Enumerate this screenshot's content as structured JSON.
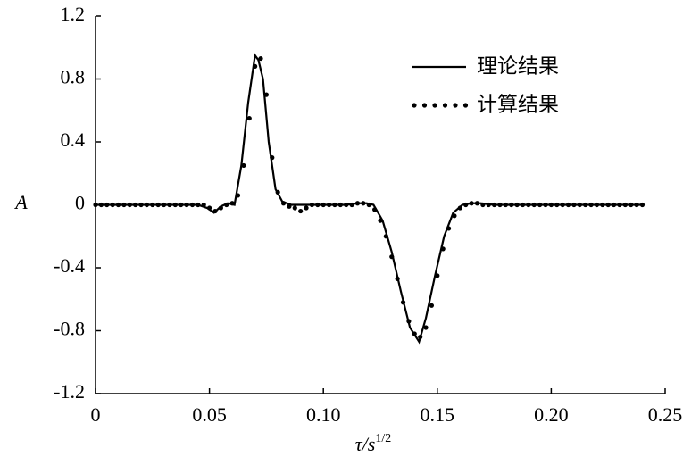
{
  "chart_data": {
    "type": "line",
    "xlabel": "τ/s",
    "xlabel_sup": "1/2",
    "ylabel": "A",
    "xlim": [
      0,
      0.25
    ],
    "ylim": [
      -1.2,
      1.2
    ],
    "xticks": [
      0,
      0.05,
      {
        "value": 0.1,
        "label": "0.10"
      },
      0.15,
      {
        "value": 0.2,
        "label": "0.20"
      },
      0.25
    ],
    "yticks": [
      1.2,
      0.8,
      0.4,
      0,
      -0.4,
      -0.8,
      -1.2
    ],
    "legend": "upper right",
    "series": [
      {
        "name": "理论结果",
        "color": "#000000",
        "style": "solid",
        "x": [
          0,
          0.045,
          0.049,
          0.052,
          0.055,
          0.058,
          0.061,
          0.064,
          0.067,
          0.07,
          0.0715,
          0.0735,
          0.076,
          0.079,
          0.082,
          0.086,
          0.09,
          0.1,
          0.11,
          0.115,
          0.119,
          0.122,
          0.126,
          0.13,
          0.134,
          0.138,
          0.142,
          0.145,
          0.149,
          0.153,
          0.157,
          0.161,
          0.165,
          0.169,
          0.175,
          0.24
        ],
        "values": [
          0,
          0,
          -0.02,
          -0.05,
          -0.01,
          0.01,
          0,
          0.25,
          0.65,
          0.95,
          0.92,
          0.8,
          0.4,
          0.1,
          0.02,
          0,
          0,
          0,
          0,
          0.01,
          0.01,
          0,
          -0.1,
          -0.3,
          -0.55,
          -0.78,
          -0.87,
          -0.72,
          -0.45,
          -0.2,
          -0.05,
          0,
          0.01,
          0.01,
          0,
          0
        ]
      },
      {
        "name": "计算结果",
        "color": "#000000",
        "style": "dotted",
        "x": [
          0,
          0.0025,
          0.005,
          0.0075,
          0.01,
          0.0125,
          0.015,
          0.0175,
          0.02,
          0.0225,
          0.025,
          0.0275,
          0.03,
          0.0325,
          0.035,
          0.0375,
          0.04,
          0.0425,
          0.045,
          0.0475,
          0.05,
          0.0525,
          0.055,
          0.0575,
          0.06,
          0.0625,
          0.065,
          0.0675,
          0.07,
          0.0725,
          0.075,
          0.0775,
          0.08,
          0.0825,
          0.085,
          0.0875,
          0.09,
          0.0925,
          0.095,
          0.0975,
          0.1,
          0.1025,
          0.105,
          0.1075,
          0.11,
          0.1125,
          0.115,
          0.1175,
          0.12,
          0.1225,
          0.125,
          0.1275,
          0.13,
          0.1325,
          0.135,
          0.1375,
          0.14,
          0.1425,
          0.145,
          0.1475,
          0.15,
          0.1525,
          0.155,
          0.1575,
          0.16,
          0.1625,
          0.165,
          0.1675,
          0.17,
          0.1725,
          0.175,
          0.1775,
          0.18,
          0.1825,
          0.185,
          0.1875,
          0.19,
          0.1925,
          0.195,
          0.1975,
          0.2,
          0.2025,
          0.205,
          0.2075,
          0.21,
          0.2125,
          0.215,
          0.2175,
          0.22,
          0.2225,
          0.225,
          0.2275,
          0.23,
          0.2325,
          0.235,
          0.2375,
          0.24
        ],
        "values": [
          0,
          0,
          0,
          0,
          0,
          0,
          0,
          0,
          0,
          0,
          0,
          0,
          0,
          0,
          0,
          0,
          0,
          0,
          0,
          0,
          -0.02,
          -0.04,
          -0.02,
          0,
          0.01,
          0.06,
          0.25,
          0.55,
          0.88,
          0.93,
          0.7,
          0.3,
          0.08,
          0.01,
          -0.01,
          -0.02,
          -0.04,
          -0.02,
          0,
          0,
          0,
          0,
          0,
          0,
          0,
          0,
          0.01,
          0.01,
          0,
          -0.03,
          -0.1,
          -0.2,
          -0.33,
          -0.47,
          -0.62,
          -0.74,
          -0.82,
          -0.84,
          -0.78,
          -0.64,
          -0.45,
          -0.28,
          -0.15,
          -0.07,
          -0.02,
          0,
          0.01,
          0.01,
          0,
          0,
          0,
          0,
          0,
          0,
          0,
          0,
          0,
          0,
          0,
          0,
          0,
          0,
          0,
          0,
          0,
          0,
          0,
          0,
          0,
          0,
          0,
          0,
          0,
          0,
          0,
          0,
          0
        ]
      }
    ]
  }
}
